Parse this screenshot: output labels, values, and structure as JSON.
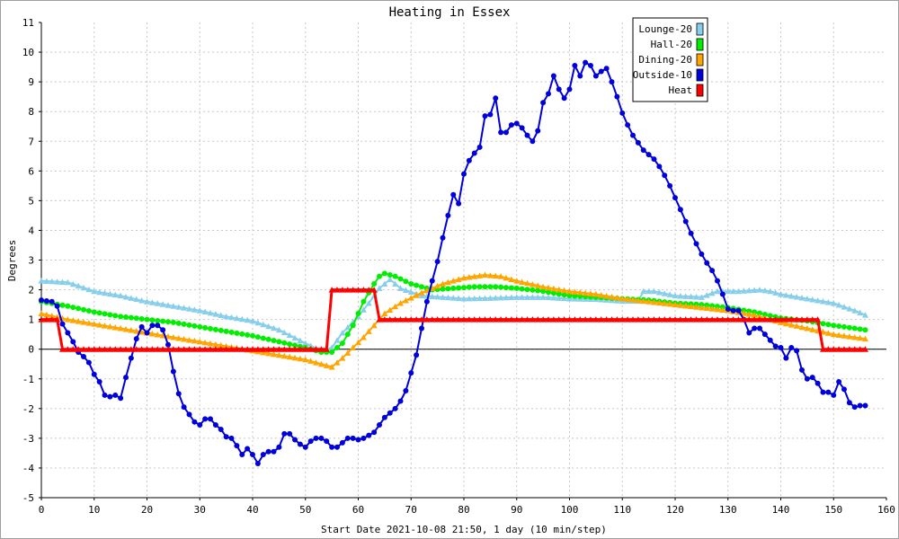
{
  "chart_data": {
    "type": "line",
    "title": "Heating in Essex",
    "xlabel": "Start Date 2021-10-08 21:50, 1 day (10 min/step)",
    "ylabel": "Degrees",
    "xlim": [
      0,
      160
    ],
    "ylim": [
      -5,
      11
    ],
    "xticks": [
      0,
      10,
      20,
      30,
      40,
      50,
      60,
      70,
      80,
      90,
      100,
      110,
      120,
      130,
      140,
      150,
      160
    ],
    "yticks": [
      -5,
      -4,
      -3,
      -2,
      -1,
      0,
      1,
      2,
      3,
      4,
      5,
      6,
      7,
      8,
      9,
      10,
      11
    ],
    "grid": true,
    "legend_position": "top-right",
    "series": [
      {
        "name": "Lounge-20",
        "color": "#87ceeb",
        "marker": "triangle",
        "points": [
          [
            0,
            2.3
          ],
          [
            5,
            2.25
          ],
          [
            10,
            1.95
          ],
          [
            15,
            1.8
          ],
          [
            20,
            1.6
          ],
          [
            25,
            1.45
          ],
          [
            30,
            1.3
          ],
          [
            35,
            1.1
          ],
          [
            40,
            0.95
          ],
          [
            45,
            0.65
          ],
          [
            50,
            0.2
          ],
          [
            53,
            -0.05
          ],
          [
            55,
            0.05
          ],
          [
            57,
            0.55
          ],
          [
            60,
            1.1
          ],
          [
            62,
            1.55
          ],
          [
            64,
            2.05
          ],
          [
            66,
            2.35
          ],
          [
            68,
            2.05
          ],
          [
            72,
            1.8
          ],
          [
            76,
            1.75
          ],
          [
            80,
            1.7
          ],
          [
            85,
            1.72
          ],
          [
            90,
            1.75
          ],
          [
            95,
            1.75
          ],
          [
            100,
            1.7
          ],
          [
            105,
            1.68
          ],
          [
            110,
            1.62
          ],
          [
            113,
            1.62
          ],
          [
            114,
            1.95
          ],
          [
            116,
            1.95
          ],
          [
            120,
            1.8
          ],
          [
            125,
            1.75
          ],
          [
            128,
            1.95
          ],
          [
            132,
            1.95
          ],
          [
            136,
            2.0
          ],
          [
            138,
            1.95
          ],
          [
            140,
            1.85
          ],
          [
            145,
            1.7
          ],
          [
            150,
            1.55
          ],
          [
            154,
            1.3
          ],
          [
            156,
            1.15
          ]
        ]
      },
      {
        "name": "Hall-20",
        "color": "#00ee00",
        "marker": "circle",
        "points": [
          [
            0,
            1.6
          ],
          [
            5,
            1.45
          ],
          [
            10,
            1.25
          ],
          [
            15,
            1.1
          ],
          [
            20,
            1.0
          ],
          [
            25,
            0.9
          ],
          [
            30,
            0.75
          ],
          [
            35,
            0.6
          ],
          [
            40,
            0.45
          ],
          [
            45,
            0.25
          ],
          [
            50,
            0.05
          ],
          [
            53,
            -0.1
          ],
          [
            55,
            -0.1
          ],
          [
            57,
            0.2
          ],
          [
            59,
            0.8
          ],
          [
            61,
            1.6
          ],
          [
            63,
            2.2
          ],
          [
            64,
            2.45
          ],
          [
            65,
            2.55
          ],
          [
            67,
            2.45
          ],
          [
            70,
            2.2
          ],
          [
            74,
            2.0
          ],
          [
            78,
            2.05
          ],
          [
            82,
            2.1
          ],
          [
            86,
            2.1
          ],
          [
            90,
            2.05
          ],
          [
            95,
            1.95
          ],
          [
            100,
            1.8
          ],
          [
            105,
            1.75
          ],
          [
            110,
            1.7
          ],
          [
            115,
            1.65
          ],
          [
            120,
            1.55
          ],
          [
            125,
            1.5
          ],
          [
            130,
            1.4
          ],
          [
            135,
            1.25
          ],
          [
            140,
            1.05
          ],
          [
            145,
            0.95
          ],
          [
            150,
            0.8
          ],
          [
            154,
            0.7
          ],
          [
            156,
            0.65
          ]
        ]
      },
      {
        "name": "Dining-20",
        "color": "#ffa500",
        "marker": "triangle",
        "points": [
          [
            0,
            1.2
          ],
          [
            5,
            1.0
          ],
          [
            10,
            0.85
          ],
          [
            15,
            0.7
          ],
          [
            20,
            0.55
          ],
          [
            25,
            0.4
          ],
          [
            30,
            0.25
          ],
          [
            35,
            0.1
          ],
          [
            40,
            -0.05
          ],
          [
            45,
            -0.2
          ],
          [
            50,
            -0.35
          ],
          [
            53,
            -0.5
          ],
          [
            55,
            -0.6
          ],
          [
            57,
            -0.3
          ],
          [
            59,
            0.05
          ],
          [
            61,
            0.4
          ],
          [
            63,
            0.8
          ],
          [
            65,
            1.2
          ],
          [
            68,
            1.55
          ],
          [
            72,
            1.9
          ],
          [
            76,
            2.2
          ],
          [
            80,
            2.4
          ],
          [
            84,
            2.5
          ],
          [
            87,
            2.45
          ],
          [
            90,
            2.3
          ],
          [
            95,
            2.1
          ],
          [
            100,
            1.95
          ],
          [
            105,
            1.85
          ],
          [
            110,
            1.7
          ],
          [
            115,
            1.6
          ],
          [
            120,
            1.5
          ],
          [
            125,
            1.4
          ],
          [
            130,
            1.3
          ],
          [
            135,
            1.15
          ],
          [
            140,
            0.9
          ],
          [
            145,
            0.7
          ],
          [
            150,
            0.5
          ],
          [
            154,
            0.4
          ],
          [
            156,
            0.35
          ]
        ]
      },
      {
        "name": "Outside-10",
        "color": "#0000dd",
        "marker": "circle",
        "points": [
          [
            0,
            1.65
          ],
          [
            2,
            1.6
          ],
          [
            3,
            1.45
          ],
          [
            4,
            0.85
          ],
          [
            5,
            0.55
          ],
          [
            6,
            0.25
          ],
          [
            7,
            -0.1
          ],
          [
            8,
            -0.25
          ],
          [
            9,
            -0.45
          ],
          [
            10,
            -0.85
          ],
          [
            11,
            -1.1
          ],
          [
            12,
            -1.55
          ],
          [
            13,
            -1.6
          ],
          [
            14,
            -1.55
          ],
          [
            15,
            -1.65
          ],
          [
            16,
            -0.95
          ],
          [
            17,
            -0.3
          ],
          [
            18,
            0.35
          ],
          [
            19,
            0.75
          ],
          [
            20,
            0.55
          ],
          [
            21,
            0.8
          ],
          [
            22,
            0.8
          ],
          [
            23,
            0.65
          ],
          [
            24,
            0.15
          ],
          [
            25,
            -0.75
          ],
          [
            26,
            -1.5
          ],
          [
            27,
            -1.95
          ],
          [
            28,
            -2.2
          ],
          [
            29,
            -2.45
          ],
          [
            30,
            -2.55
          ],
          [
            31,
            -2.35
          ],
          [
            32,
            -2.35
          ],
          [
            33,
            -2.55
          ],
          [
            34,
            -2.7
          ],
          [
            35,
            -2.95
          ],
          [
            36,
            -3.0
          ],
          [
            37,
            -3.25
          ],
          [
            38,
            -3.55
          ],
          [
            39,
            -3.35
          ],
          [
            40,
            -3.55
          ],
          [
            41,
            -3.85
          ],
          [
            42,
            -3.55
          ],
          [
            43,
            -3.45
          ],
          [
            44,
            -3.45
          ],
          [
            45,
            -3.3
          ],
          [
            46,
            -2.85
          ],
          [
            47,
            -2.85
          ],
          [
            48,
            -3.05
          ],
          [
            49,
            -3.2
          ],
          [
            50,
            -3.3
          ],
          [
            51,
            -3.1
          ],
          [
            52,
            -3.0
          ],
          [
            53,
            -3.0
          ],
          [
            54,
            -3.1
          ],
          [
            55,
            -3.3
          ],
          [
            56,
            -3.3
          ],
          [
            57,
            -3.15
          ],
          [
            58,
            -3.0
          ],
          [
            59,
            -3.0
          ],
          [
            60,
            -3.05
          ],
          [
            61,
            -3.0
          ],
          [
            62,
            -2.9
          ],
          [
            63,
            -2.8
          ],
          [
            64,
            -2.55
          ],
          [
            65,
            -2.3
          ],
          [
            66,
            -2.15
          ],
          [
            67,
            -2.0
          ],
          [
            68,
            -1.75
          ],
          [
            69,
            -1.4
          ],
          [
            70,
            -0.8
          ],
          [
            71,
            -0.2
          ],
          [
            72,
            0.7
          ],
          [
            73,
            1.6
          ],
          [
            74,
            2.3
          ],
          [
            75,
            2.95
          ],
          [
            76,
            3.75
          ],
          [
            77,
            4.5
          ],
          [
            78,
            5.2
          ],
          [
            79,
            4.9
          ],
          [
            80,
            5.9
          ],
          [
            81,
            6.35
          ],
          [
            82,
            6.6
          ],
          [
            83,
            6.8
          ],
          [
            84,
            7.85
          ],
          [
            85,
            7.9
          ],
          [
            86,
            8.45
          ],
          [
            87,
            7.3
          ],
          [
            88,
            7.3
          ],
          [
            89,
            7.55
          ],
          [
            90,
            7.6
          ],
          [
            91,
            7.45
          ],
          [
            92,
            7.2
          ],
          [
            93,
            7.0
          ],
          [
            94,
            7.35
          ],
          [
            95,
            8.3
          ],
          [
            96,
            8.6
          ],
          [
            97,
            9.2
          ],
          [
            98,
            8.75
          ],
          [
            99,
            8.45
          ],
          [
            100,
            8.75
          ],
          [
            101,
            9.55
          ],
          [
            102,
            9.2
          ],
          [
            103,
            9.65
          ],
          [
            104,
            9.55
          ],
          [
            105,
            9.2
          ],
          [
            106,
            9.35
          ],
          [
            107,
            9.45
          ],
          [
            108,
            9.0
          ],
          [
            109,
            8.5
          ],
          [
            110,
            7.95
          ],
          [
            111,
            7.55
          ],
          [
            112,
            7.2
          ],
          [
            113,
            6.95
          ],
          [
            114,
            6.7
          ],
          [
            115,
            6.55
          ],
          [
            116,
            6.4
          ],
          [
            117,
            6.15
          ],
          [
            118,
            5.85
          ],
          [
            119,
            5.5
          ],
          [
            120,
            5.1
          ],
          [
            121,
            4.7
          ],
          [
            122,
            4.3
          ],
          [
            123,
            3.9
          ],
          [
            124,
            3.55
          ],
          [
            125,
            3.2
          ],
          [
            126,
            2.9
          ],
          [
            127,
            2.65
          ],
          [
            128,
            2.3
          ],
          [
            129,
            1.85
          ],
          [
            130,
            1.35
          ],
          [
            131,
            1.3
          ],
          [
            132,
            1.3
          ],
          [
            133,
            1.0
          ],
          [
            134,
            0.55
          ],
          [
            135,
            0.7
          ],
          [
            136,
            0.7
          ],
          [
            137,
            0.5
          ],
          [
            138,
            0.3
          ],
          [
            139,
            0.1
          ],
          [
            140,
            0.05
          ],
          [
            141,
            -0.3
          ],
          [
            142,
            0.05
          ],
          [
            143,
            -0.05
          ],
          [
            144,
            -0.7
          ],
          [
            145,
            -1.0
          ],
          [
            146,
            -0.95
          ],
          [
            147,
            -1.15
          ],
          [
            148,
            -1.45
          ],
          [
            149,
            -1.45
          ],
          [
            150,
            -1.55
          ],
          [
            151,
            -1.1
          ],
          [
            152,
            -1.35
          ],
          [
            153,
            -1.8
          ],
          [
            154,
            -1.95
          ],
          [
            155,
            -1.9
          ],
          [
            156,
            -1.9
          ]
        ]
      },
      {
        "name": "Heat",
        "color": "#ff0000",
        "marker": "triangle",
        "points": [
          [
            0,
            1
          ],
          [
            3,
            1
          ],
          [
            4,
            0
          ],
          [
            54,
            0
          ],
          [
            55,
            2
          ],
          [
            63,
            2
          ],
          [
            64,
            1
          ],
          [
            147,
            1
          ],
          [
            148,
            0
          ],
          [
            156,
            0
          ]
        ]
      }
    ]
  }
}
